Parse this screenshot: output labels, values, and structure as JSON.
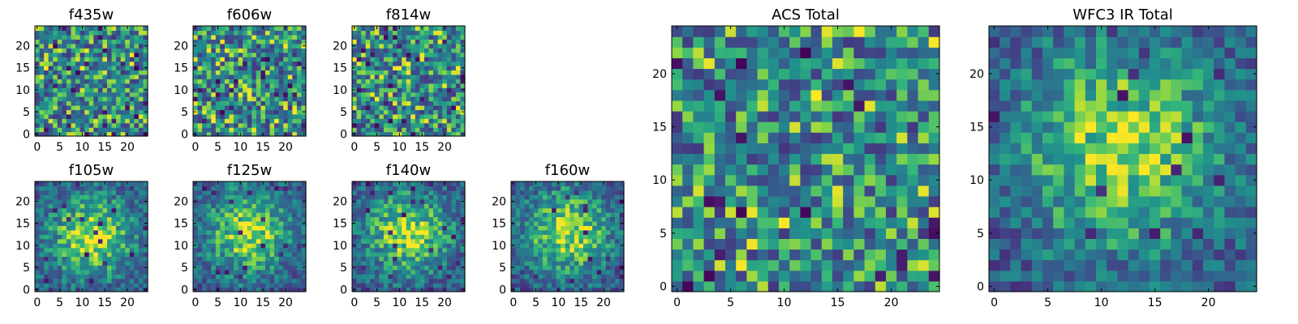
{
  "chart_data": [
    {
      "type": "heatmap",
      "title": "f435w",
      "xlim": [
        0,
        24
      ],
      "ylim": [
        0,
        24
      ],
      "grid_size": 25,
      "xticks": [
        0,
        5,
        10,
        15,
        20
      ],
      "yticks": [
        0,
        5,
        10,
        15,
        20
      ],
      "colormap": "viridis",
      "pattern": "noise",
      "center": [
        12,
        12
      ],
      "seed": 11
    },
    {
      "type": "heatmap",
      "title": "f606w",
      "xlim": [
        0,
        24
      ],
      "ylim": [
        0,
        24
      ],
      "grid_size": 25,
      "xticks": [
        0,
        5,
        10,
        15,
        20
      ],
      "yticks": [
        0,
        5,
        10,
        15,
        20
      ],
      "colormap": "viridis",
      "pattern": "noise",
      "center": [
        12,
        12
      ],
      "seed": 23
    },
    {
      "type": "heatmap",
      "title": "f814w",
      "xlim": [
        0,
        24
      ],
      "ylim": [
        0,
        24
      ],
      "grid_size": 25,
      "xticks": [
        0,
        5,
        10,
        15,
        20
      ],
      "yticks": [
        0,
        5,
        10,
        15,
        20
      ],
      "colormap": "viridis",
      "pattern": "noise",
      "center": [
        12,
        12
      ],
      "seed": 37
    },
    {
      "type": "heatmap",
      "title": "f105w",
      "xlim": [
        0,
        24
      ],
      "ylim": [
        0,
        24
      ],
      "grid_size": 25,
      "xticks": [
        0,
        5,
        10,
        15,
        20
      ],
      "yticks": [
        0,
        5,
        10,
        15,
        20
      ],
      "colormap": "viridis",
      "pattern": "blob",
      "center": [
        12,
        12
      ],
      "seed": 41
    },
    {
      "type": "heatmap",
      "title": "f125w",
      "xlim": [
        0,
        24
      ],
      "ylim": [
        0,
        24
      ],
      "grid_size": 25,
      "xticks": [
        0,
        5,
        10,
        15,
        20
      ],
      "yticks": [
        0,
        5,
        10,
        15,
        20
      ],
      "colormap": "viridis",
      "pattern": "blob",
      "center": [
        12,
        13
      ],
      "seed": 53
    },
    {
      "type": "heatmap",
      "title": "f140w",
      "xlim": [
        0,
        24
      ],
      "ylim": [
        0,
        24
      ],
      "grid_size": 25,
      "xticks": [
        0,
        5,
        10,
        15,
        20
      ],
      "yticks": [
        0,
        5,
        10,
        15,
        20
      ],
      "colormap": "viridis",
      "pattern": "blob",
      "center": [
        12,
        13
      ],
      "seed": 67
    },
    {
      "type": "heatmap",
      "title": "f160w",
      "xlim": [
        0,
        24
      ],
      "ylim": [
        0,
        24
      ],
      "grid_size": 25,
      "xticks": [
        0,
        5,
        10,
        15,
        20
      ],
      "yticks": [
        0,
        5,
        10,
        15,
        20
      ],
      "colormap": "viridis",
      "pattern": "blob",
      "center": [
        12,
        13
      ],
      "seed": 79
    },
    {
      "type": "heatmap",
      "title": "ACS Total",
      "xlim": [
        0,
        24
      ],
      "ylim": [
        0,
        24
      ],
      "grid_size": 25,
      "xticks": [
        0,
        5,
        10,
        15,
        20
      ],
      "yticks": [
        0,
        5,
        10,
        15,
        20
      ],
      "colormap": "viridis",
      "pattern": "noise",
      "center": [
        12,
        12
      ],
      "seed": 97
    },
    {
      "type": "heatmap",
      "title": "WFC3 IR Total",
      "xlim": [
        0,
        24
      ],
      "ylim": [
        0,
        24
      ],
      "grid_size": 25,
      "xticks": [
        0,
        5,
        10,
        15,
        20
      ],
      "yticks": [
        0,
        5,
        10,
        15,
        20
      ],
      "colormap": "viridis",
      "pattern": "blob",
      "center": [
        12,
        13
      ],
      "seed": 103
    }
  ]
}
